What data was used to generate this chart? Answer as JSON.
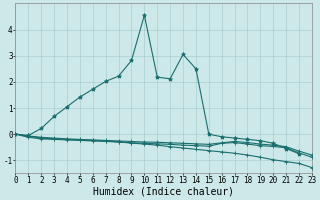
{
  "xlabel": "Humidex (Indice chaleur)",
  "ylabel": "",
  "bg_color": "#cce8e8",
  "grid_color": "#aacfcf",
  "line_color": "#1a6e6e",
  "xlim": [
    0,
    23
  ],
  "ylim": [
    -1.5,
    5.0
  ],
  "x": [
    0,
    1,
    2,
    3,
    4,
    5,
    6,
    7,
    8,
    9,
    10,
    11,
    12,
    13,
    14,
    15,
    16,
    17,
    18,
    19,
    20,
    21,
    22,
    23
  ],
  "series": [
    [
      0.0,
      -0.08,
      -0.15,
      -0.18,
      -0.2,
      -0.22,
      -0.24,
      -0.26,
      -0.3,
      -0.34,
      -0.38,
      -0.42,
      -0.48,
      -0.53,
      -0.58,
      -0.63,
      -0.68,
      -0.73,
      -0.8,
      -0.88,
      -0.98,
      -1.05,
      -1.12,
      -1.28
    ],
    [
      0.0,
      -0.12,
      -0.18,
      -0.2,
      -0.22,
      -0.24,
      -0.26,
      -0.28,
      -0.3,
      -0.33,
      -0.35,
      -0.37,
      -0.39,
      -0.42,
      -0.44,
      -0.46,
      -0.35,
      -0.32,
      -0.38,
      -0.44,
      -0.47,
      -0.52,
      -0.72,
      -0.88
    ],
    [
      0.0,
      -0.07,
      -0.12,
      -0.15,
      -0.18,
      -0.2,
      -0.22,
      -0.24,
      -0.26,
      -0.28,
      -0.3,
      -0.31,
      -0.33,
      -0.35,
      -0.37,
      -0.39,
      -0.33,
      -0.28,
      -0.32,
      -0.38,
      -0.42,
      -0.48,
      -0.65,
      -0.8
    ],
    [
      0.0,
      -0.05,
      0.22,
      0.68,
      1.05,
      1.42,
      1.72,
      2.02,
      2.22,
      2.82,
      4.55,
      2.18,
      2.12,
      3.05,
      2.5,
      0.0,
      -0.1,
      -0.15,
      -0.2,
      -0.25,
      -0.35,
      -0.55,
      -0.75,
      null
    ]
  ],
  "yticks": [
    -1,
    0,
    1,
    2,
    3,
    4
  ],
  "xticks": [
    0,
    1,
    2,
    3,
    4,
    5,
    6,
    7,
    8,
    9,
    10,
    11,
    12,
    13,
    14,
    15,
    16,
    17,
    18,
    19,
    20,
    21,
    22,
    23
  ],
  "tick_fontsize": 5.5,
  "xlabel_fontsize": 7,
  "lw": 0.8,
  "ms": 2.5
}
